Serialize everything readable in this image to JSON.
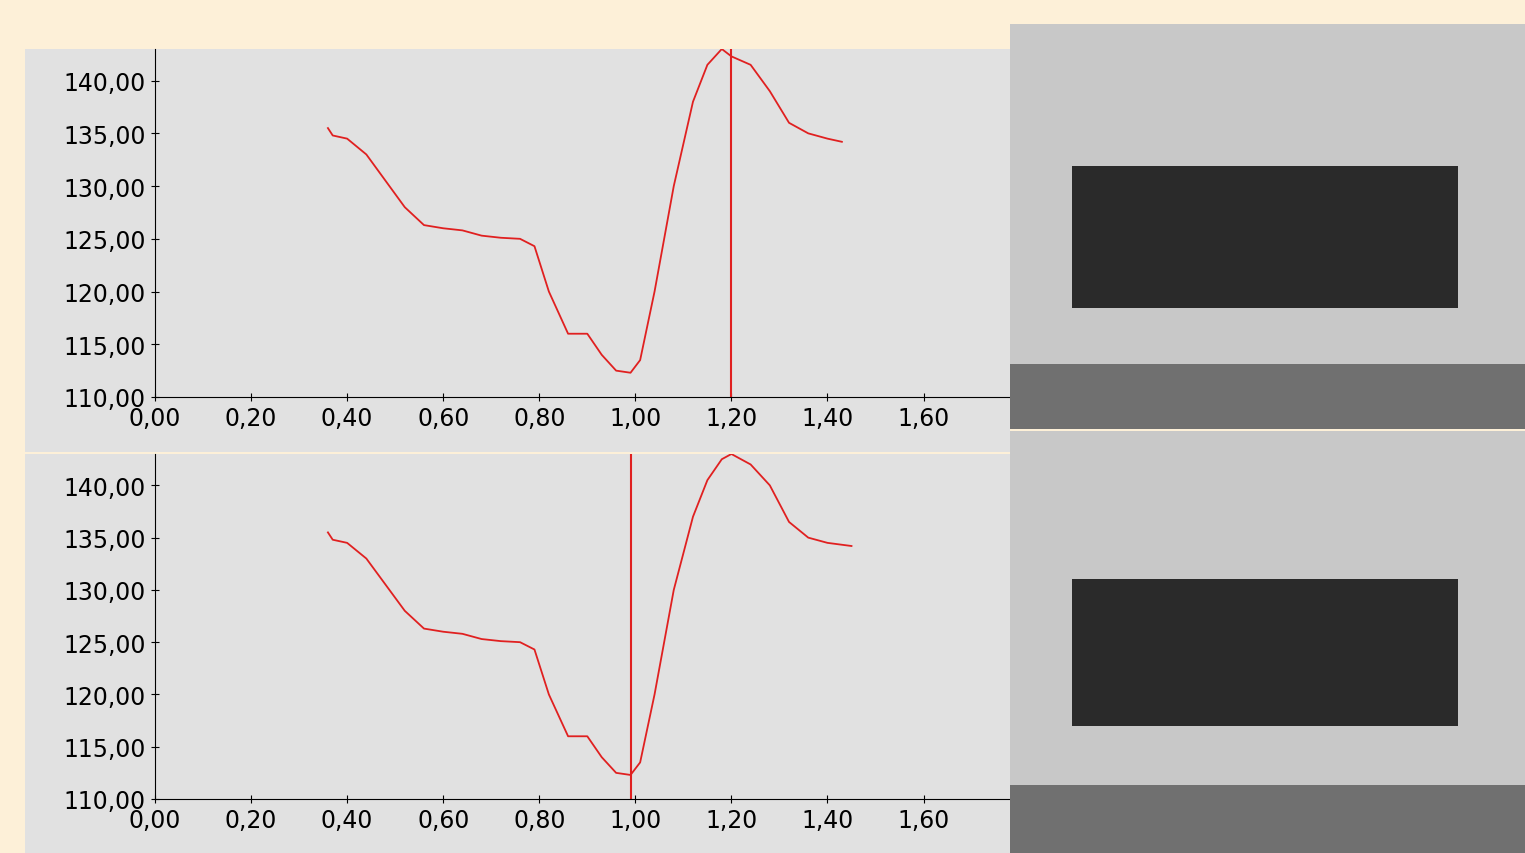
{
  "chart_data": [
    {
      "type": "line",
      "cursor_x": 1.2,
      "x": [
        0.36,
        0.37,
        0.4,
        0.44,
        0.48,
        0.52,
        0.56,
        0.6,
        0.64,
        0.68,
        0.72,
        0.76,
        0.79,
        0.82,
        0.86,
        0.9,
        0.93,
        0.96,
        0.99,
        1.01,
        1.04,
        1.08,
        1.12,
        1.15,
        1.18,
        1.2,
        1.24,
        1.28,
        1.32,
        1.36,
        1.4,
        1.43
      ],
      "values": [
        135.5,
        134.8,
        134.5,
        133.0,
        130.5,
        128.0,
        126.3,
        126.0,
        125.8,
        125.3,
        125.1,
        125.0,
        124.3,
        120.0,
        116.0,
        116.0,
        114.0,
        112.5,
        112.3,
        113.5,
        120.0,
        130.0,
        138.0,
        141.5,
        143.0,
        142.3,
        141.5,
        139.0,
        136.0,
        135.0,
        134.5,
        134.2
      ],
      "color": "#e02020",
      "grid": false,
      "xlim": [
        0,
        1.78
      ],
      "ylim": [
        110,
        143
      ],
      "xticks": [
        {
          "value": 0,
          "label": "0,00"
        },
        {
          "value": 0.2,
          "label": "0,20"
        },
        {
          "value": 0.4,
          "label": "0,40"
        },
        {
          "value": 0.6,
          "label": "0,60"
        },
        {
          "value": 0.8,
          "label": "0,80"
        },
        {
          "value": 1.0,
          "label": "1,00"
        },
        {
          "value": 1.2,
          "label": "1,20"
        },
        {
          "value": 1.4,
          "label": "1,40"
        },
        {
          "value": 1.6,
          "label": "1,60"
        }
      ],
      "yticks": [
        {
          "value": 110,
          "label": "110,00"
        },
        {
          "value": 115,
          "label": "115,00"
        },
        {
          "value": 120,
          "label": "120,00"
        },
        {
          "value": 125,
          "label": "125,00"
        },
        {
          "value": 130,
          "label": "130,00"
        },
        {
          "value": 135,
          "label": "135,00"
        },
        {
          "value": 140,
          "label": "140,00"
        }
      ]
    },
    {
      "type": "line",
      "cursor_x": 0.99,
      "x": [
        0.36,
        0.37,
        0.4,
        0.44,
        0.48,
        0.52,
        0.56,
        0.6,
        0.64,
        0.68,
        0.72,
        0.76,
        0.79,
        0.82,
        0.86,
        0.9,
        0.93,
        0.96,
        0.99,
        1.01,
        1.04,
        1.08,
        1.12,
        1.15,
        1.18,
        1.2,
        1.24,
        1.28,
        1.32,
        1.36,
        1.4,
        1.45
      ],
      "values": [
        135.5,
        134.8,
        134.5,
        133.0,
        130.5,
        128.0,
        126.3,
        126.0,
        125.8,
        125.3,
        125.1,
        125.0,
        124.3,
        120.0,
        116.0,
        116.0,
        114.0,
        112.5,
        112.3,
        113.5,
        120.0,
        130.0,
        137.0,
        140.5,
        142.5,
        143.0,
        142.0,
        140.0,
        136.5,
        135.0,
        134.5,
        134.2
      ],
      "color": "#e02020",
      "grid": false,
      "xlim": [
        0,
        1.78
      ],
      "ylim": [
        110,
        143
      ],
      "xticks": [
        {
          "value": 0,
          "label": "0,00"
        },
        {
          "value": 0.2,
          "label": "0,20"
        },
        {
          "value": 0.4,
          "label": "0,40"
        },
        {
          "value": 0.6,
          "label": "0,60"
        },
        {
          "value": 0.8,
          "label": "0,80"
        },
        {
          "value": 1.0,
          "label": "1,00"
        },
        {
          "value": 1.2,
          "label": "1,20"
        },
        {
          "value": 1.4,
          "label": "1,40"
        },
        {
          "value": 1.6,
          "label": "1,60"
        }
      ],
      "yticks": [
        {
          "value": 110,
          "label": "110,00"
        },
        {
          "value": 115,
          "label": "115,00"
        },
        {
          "value": 120,
          "label": "120,00"
        },
        {
          "value": 125,
          "label": "125,00"
        },
        {
          "value": 130,
          "label": "130,00"
        },
        {
          "value": 135,
          "label": "135,00"
        },
        {
          "value": 140,
          "label": "140,00"
        }
      ]
    }
  ]
}
